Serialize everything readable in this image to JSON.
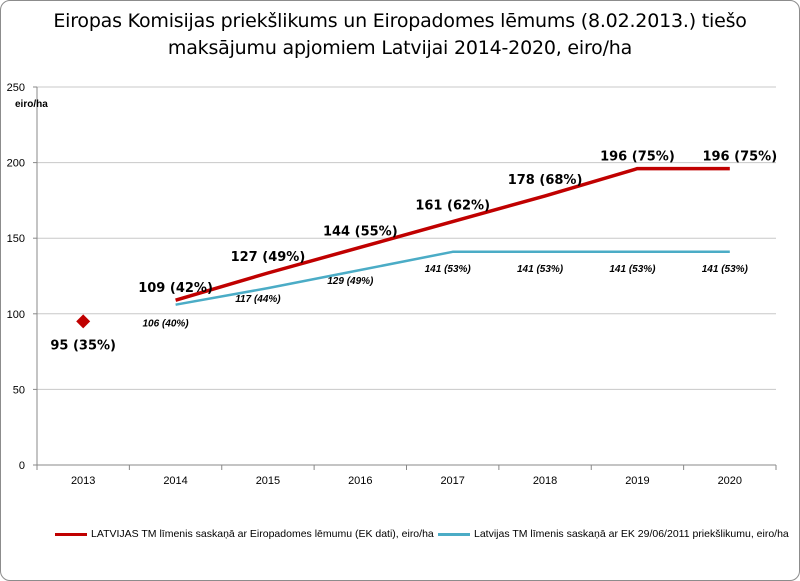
{
  "title": {
    "line1": "Eiropas Komisijas priekšlikums un Eiropadomes lēmums (8.02.2013.) tiešo",
    "line2": "maksājumu apjomiem Latvijai 2014-2020, eiro/ha"
  },
  "chart_data": {
    "type": "line",
    "ylabel": "eiro/ha",
    "ylim": [
      0,
      250
    ],
    "yticks": [
      "0",
      "50",
      "100",
      "150",
      "200",
      "250"
    ],
    "categories": [
      "2013",
      "2014",
      "2015",
      "2016",
      "2017",
      "2018",
      "2019",
      "2020"
    ],
    "grid": "horizontal",
    "legend_position": "bottom",
    "point_2013": {
      "value": 95,
      "label": "95 (35%)",
      "color": "#c00000",
      "marker": "diamond"
    },
    "series": [
      {
        "name": "LATVIJAS TM līmenis saskaņā ar Eiropadomes lēmumu (EK dati), eiro/ha",
        "color": "#c00000",
        "values": [
          null,
          109,
          127,
          144,
          161,
          178,
          196,
          196
        ],
        "labels": [
          "",
          "109 (42%)",
          "127 (49%)",
          "144 (55%)",
          "161 (62%)",
          "178 (68%)",
          "196 (75%)",
          "196 (75%)"
        ]
      },
      {
        "name": "Latvijas TM līmenis saskaņā ar EK 29/06/2011 priekšlikumu, eiro/ha",
        "color": "#4bacc6",
        "values": [
          null,
          106,
          117,
          129,
          141,
          141,
          141,
          141
        ],
        "labels": [
          "",
          "106 (40%)",
          "117 (44%)",
          "129 (49%)",
          "141 (53%)",
          "141 (53%)",
          "141 (53%)",
          "141 (53%)"
        ]
      }
    ]
  }
}
